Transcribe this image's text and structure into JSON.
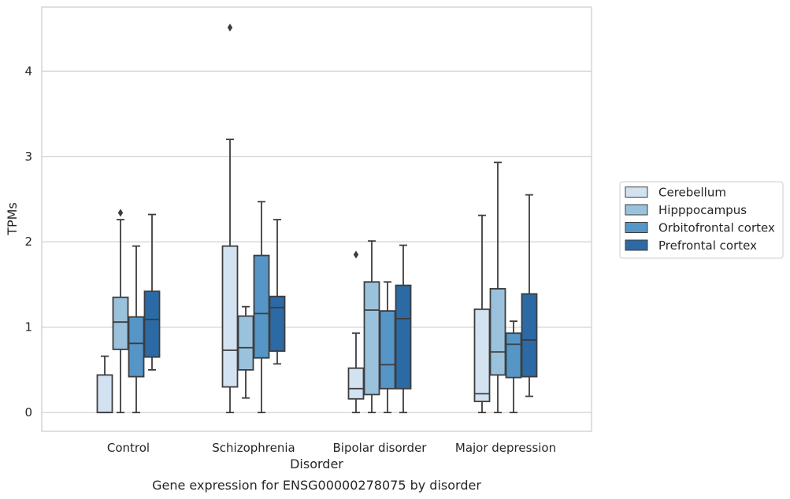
{
  "chart_data": {
    "type": "box",
    "title": "",
    "caption": "Gene expression for ENSG00000278075 by disorder",
    "xlabel": "Disorder",
    "ylabel": "TPMs",
    "ylim": [
      -0.22,
      4.75
    ],
    "yticks": [
      "0",
      "1",
      "2",
      "3",
      "4"
    ],
    "grid": "horizontal",
    "legend_position": "right",
    "categories": [
      "Control",
      "Schizophrenia",
      "Bipolar disorder",
      "Major depression"
    ],
    "series": [
      {
        "name": "Cerebellum",
        "color": "#d2e2f1",
        "boxes": [
          {
            "whislo": 0,
            "q1": 0,
            "med": 0,
            "q3": 0.44,
            "whishi": 0.66,
            "fliers": []
          },
          {
            "whislo": 0,
            "q1": 0.3,
            "med": 0.73,
            "q3": 1.95,
            "whishi": 3.2,
            "fliers": [
              4.51
            ]
          },
          {
            "whislo": 0,
            "q1": 0.16,
            "med": 0.28,
            "q3": 0.52,
            "whishi": 0.93,
            "fliers": [
              1.85
            ]
          },
          {
            "whislo": 0,
            "q1": 0.13,
            "med": 0.22,
            "q3": 1.21,
            "whishi": 2.31,
            "fliers": []
          }
        ]
      },
      {
        "name": "Hipppocampus",
        "color": "#9ac2dc",
        "boxes": [
          {
            "whislo": 0,
            "q1": 0.74,
            "med": 1.06,
            "q3": 1.35,
            "whishi": 2.26,
            "fliers": [
              2.34
            ]
          },
          {
            "whislo": 0.17,
            "q1": 0.5,
            "med": 0.76,
            "q3": 1.13,
            "whishi": 1.24,
            "fliers": []
          },
          {
            "whislo": 0,
            "q1": 0.21,
            "med": 1.2,
            "q3": 1.53,
            "whishi": 2.01,
            "fliers": []
          },
          {
            "whislo": 0,
            "q1": 0.44,
            "med": 0.71,
            "q3": 1.45,
            "whishi": 2.93,
            "fliers": []
          }
        ]
      },
      {
        "name": "Orbitofrontal cortex",
        "color": "#5596c7",
        "boxes": [
          {
            "whislo": 0,
            "q1": 0.42,
            "med": 0.81,
            "q3": 1.12,
            "whishi": 1.95,
            "fliers": []
          },
          {
            "whislo": 0,
            "q1": 0.64,
            "med": 1.16,
            "q3": 1.84,
            "whishi": 2.47,
            "fliers": []
          },
          {
            "whislo": 0,
            "q1": 0.28,
            "med": 0.56,
            "q3": 1.19,
            "whishi": 1.53,
            "fliers": []
          },
          {
            "whislo": 0,
            "q1": 0.41,
            "med": 0.8,
            "q3": 0.93,
            "whishi": 1.07,
            "fliers": []
          }
        ]
      },
      {
        "name": "Prefrontal cortex",
        "color": "#2b6aa5",
        "boxes": [
          {
            "whislo": 0.5,
            "q1": 0.65,
            "med": 1.09,
            "q3": 1.42,
            "whishi": 2.32,
            "fliers": []
          },
          {
            "whislo": 0.57,
            "q1": 0.72,
            "med": 1.23,
            "q3": 1.36,
            "whishi": 2.26,
            "fliers": []
          },
          {
            "whislo": 0,
            "q1": 0.28,
            "med": 1.1,
            "q3": 1.49,
            "whishi": 1.96,
            "fliers": []
          },
          {
            "whislo": 0.19,
            "q1": 0.42,
            "med": 0.85,
            "q3": 1.39,
            "whishi": 2.55,
            "fliers": []
          }
        ]
      }
    ]
  }
}
